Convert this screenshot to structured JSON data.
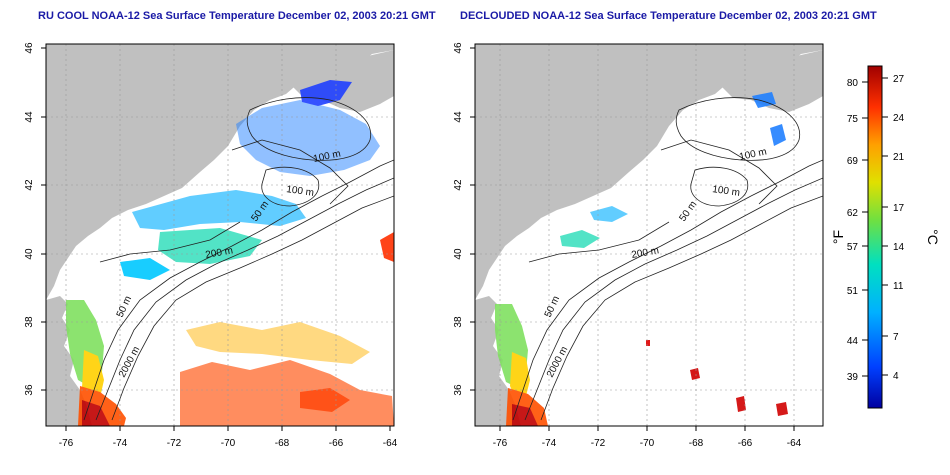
{
  "panels": [
    {
      "id": "left",
      "title": "RU COOL NOAA-12 Sea Surface Temperature December 02, 2003 20:21 GMT"
    },
    {
      "id": "right",
      "title": "DECLOUDED NOAA-12 Sea Surface Temperature December 02, 2003 20:21 GMT"
    }
  ],
  "map_axes": {
    "lon_ticks": [
      "-76",
      "-74",
      "-72",
      "-70",
      "-68",
      "-66",
      "-64"
    ],
    "lat_ticks": [
      "46",
      "44",
      "42",
      "40",
      "38",
      "36"
    ]
  },
  "contour_labels": {
    "left": [
      "100 m",
      "100 m",
      "50 m",
      "200 m",
      "50 m",
      "2000 m"
    ],
    "right": [
      "100 m",
      "100 m",
      "50 m",
      "200 m",
      "50 m",
      "2000 m"
    ]
  },
  "colors": {
    "land": "#c0c0c0",
    "water": "#ffffff",
    "title": "#1a1aa6"
  },
  "colorbar": {
    "fahrenheit_ticks": [
      "80",
      "75",
      "69",
      "62",
      "57",
      "51",
      "44",
      "39"
    ],
    "celsius_ticks": [
      "27",
      "24",
      "21",
      "17",
      "14",
      "11",
      "7",
      "4"
    ],
    "unit_f": "°F",
    "unit_c": "°C"
  }
}
